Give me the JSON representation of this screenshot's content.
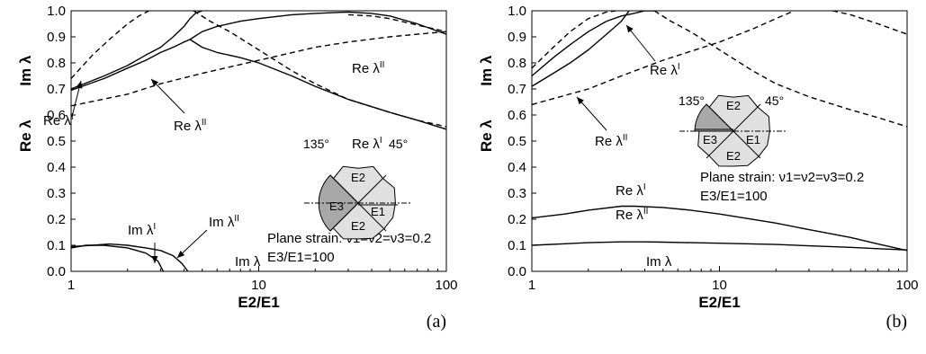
{
  "chart_data": [
    {
      "type": "line",
      "panel_label": "(a)",
      "xlabel": "E2/E1",
      "ylabel_left": "Re λ",
      "ylabel_right": "Im λ",
      "x_scale": "log",
      "xlim": [
        1,
        100
      ],
      "ylim": [
        0,
        1
      ],
      "x_ticks": [
        "1",
        "10",
        "100"
      ],
      "y_ticks": [
        "0.0",
        "0.1",
        "0.2",
        "0.3",
        "0.4",
        "0.5",
        "0.6",
        "0.7",
        "0.8",
        "0.9",
        "1.0"
      ],
      "grid": false,
      "series": [
        {
          "name": "Re λI",
          "style": "solid",
          "x": [
            1,
            1.5,
            2,
            2.5,
            3,
            3.5,
            4,
            4.3,
            4.6,
            5.0
          ],
          "y": [
            0.7,
            0.75,
            0.79,
            0.83,
            0.86,
            0.9,
            0.94,
            0.97,
            0.99,
            1.0
          ]
        },
        {
          "name": "Re λII",
          "style": "solid",
          "x": [
            1,
            1.5,
            2,
            2.5,
            3,
            3.5,
            4,
            4.3
          ],
          "y": [
            0.695,
            0.74,
            0.78,
            0.81,
            0.84,
            0.86,
            0.88,
            0.89
          ]
        },
        {
          "name": "Re λII (upper)",
          "style": "solid",
          "x": [
            4.3,
            5,
            6,
            8,
            10,
            15,
            20,
            30,
            40,
            50,
            70,
            100
          ],
          "y": [
            0.89,
            0.92,
            0.94,
            0.96,
            0.97,
            0.985,
            0.99,
            0.995,
            0.99,
            0.98,
            0.95,
            0.91
          ]
        },
        {
          "name": "Re λI (lower)",
          "style": "solid",
          "x": [
            4.3,
            5,
            6,
            8,
            10,
            15,
            20,
            30,
            50,
            70,
            100
          ],
          "y": [
            0.89,
            0.86,
            0.84,
            0.82,
            0.8,
            0.75,
            0.71,
            0.66,
            0.61,
            0.58,
            0.545
          ]
        },
        {
          "name": "Re λI dashed",
          "style": "dashed",
          "x": [
            1,
            1.3,
            1.6,
            2,
            2.3,
            2.6
          ],
          "y": [
            0.74,
            0.83,
            0.89,
            0.95,
            0.98,
            1.0
          ]
        },
        {
          "name": "Re λII dashed",
          "style": "dashed",
          "x": [
            1,
            2,
            3,
            5,
            10,
            20,
            30,
            50,
            70,
            100
          ],
          "y": [
            0.635,
            0.68,
            0.72,
            0.76,
            0.81,
            0.86,
            0.88,
            0.9,
            0.91,
            0.92
          ]
        },
        {
          "name": "Re λI dashed (right)",
          "style": "dashed",
          "x": [
            4.5,
            5.5,
            7,
            10,
            15,
            20,
            30,
            50,
            70,
            100
          ],
          "y": [
            1.0,
            0.96,
            0.92,
            0.85,
            0.77,
            0.72,
            0.66,
            0.61,
            0.58,
            0.555
          ]
        },
        {
          "name": "Re λII dashed (top)",
          "style": "dashed",
          "x": [
            30,
            40,
            50,
            70,
            100
          ],
          "y": [
            0.985,
            0.98,
            0.97,
            0.945,
            0.92
          ]
        },
        {
          "name": "Im λI",
          "style": "solid",
          "x": [
            1,
            1.2,
            1.5,
            2,
            2.5,
            2.9,
            3.1
          ],
          "y": [
            0.09,
            0.1,
            0.1,
            0.09,
            0.07,
            0.04,
            0.0
          ]
        },
        {
          "name": "Im λII",
          "style": "solid",
          "x": [
            1,
            1.3,
            1.6,
            2,
            2.5,
            3,
            3.5,
            3.9,
            4.2
          ],
          "y": [
            0.095,
            0.1,
            0.105,
            0.1,
            0.09,
            0.08,
            0.06,
            0.03,
            0.0
          ]
        }
      ],
      "annotations": {
        "re_l1": "Re λ",
        "re_l1_sup": "I",
        "re_l2": "Re λ",
        "re_l2_sup": "II",
        "re_l2_right": "Re λ",
        "re_l2_right_sup": "II",
        "re_l1_right": "Re λ",
        "re_l1_right_sup": "I",
        "im_l1": "Im λ",
        "im_l1_sup": "I",
        "im_l2": "Im λ",
        "im_l2_sup": "II",
        "im_l": "Im λ",
        "angle_135": "135°",
        "angle_45": "45°",
        "mat_top": "E2",
        "mat_left": "E3",
        "mat_right": "E1",
        "mat_bottom": "E2",
        "plane_strain": "Plane strain: ν1=ν2=ν3=0.2",
        "ratio": "E3/E1=100"
      }
    },
    {
      "type": "line",
      "panel_label": "(b)",
      "xlabel": "E2/E1",
      "ylabel_left": "Re λ",
      "ylabel_right": "Im λ",
      "x_scale": "log",
      "xlim": [
        1,
        100
      ],
      "ylim": [
        0,
        1
      ],
      "x_ticks": [
        "1",
        "10",
        "100"
      ],
      "y_ticks": [
        "0.0",
        "0.1",
        "0.2",
        "0.3",
        "0.4",
        "0.5",
        "0.6",
        "0.7",
        "0.8",
        "0.9",
        "1.0"
      ],
      "grid": false,
      "series": [
        {
          "name": "Re λI",
          "style": "solid",
          "x": [
            1,
            1.3,
            1.6,
            2,
            2.5,
            3,
            3.5,
            4,
            4.5
          ],
          "y": [
            0.75,
            0.82,
            0.87,
            0.92,
            0.96,
            0.98,
            0.99,
            1.0,
            1.0
          ]
        },
        {
          "name": "Re λII",
          "style": "solid",
          "x": [
            1,
            1.3,
            1.6,
            2,
            2.5,
            3,
            3.3
          ],
          "y": [
            0.71,
            0.76,
            0.8,
            0.85,
            0.91,
            0.96,
            1.0
          ]
        },
        {
          "name": "Re λI dashed",
          "style": "dashed",
          "x": [
            1,
            1.3,
            1.6,
            2,
            2.5,
            2.8
          ],
          "y": [
            0.78,
            0.86,
            0.92,
            0.97,
            0.995,
            1.0
          ]
        },
        {
          "name": "Re λII dashed",
          "style": "dashed",
          "x": [
            1,
            2,
            3,
            5,
            10,
            15,
            20,
            25
          ],
          "y": [
            0.64,
            0.7,
            0.75,
            0.81,
            0.88,
            0.93,
            0.97,
            1.0
          ]
        },
        {
          "name": "Re λI dashed (right)",
          "style": "dashed",
          "x": [
            4.5,
            5.5,
            7,
            10,
            15,
            20,
            30,
            50,
            70,
            100
          ],
          "y": [
            1.0,
            0.96,
            0.92,
            0.85,
            0.77,
            0.72,
            0.67,
            0.62,
            0.59,
            0.555
          ]
        },
        {
          "name": "Re λII dashed (top right)",
          "style": "dashed",
          "x": [
            40,
            50,
            70,
            100
          ],
          "y": [
            1.0,
            0.985,
            0.95,
            0.91
          ]
        },
        {
          "name": "Re λI (real)",
          "style": "solid",
          "x": [
            1,
            1.5,
            2,
            3,
            3.5,
            5,
            7,
            10,
            20,
            30,
            50,
            70,
            100
          ],
          "y": [
            0.205,
            0.22,
            0.235,
            0.25,
            0.25,
            0.245,
            0.235,
            0.22,
            0.185,
            0.16,
            0.13,
            0.105,
            0.08
          ]
        },
        {
          "name": "Im λ",
          "style": "solid",
          "x": [
            1,
            2,
            3,
            4,
            5,
            7,
            10,
            20,
            30,
            50,
            70,
            100
          ],
          "y": [
            0.1,
            0.11,
            0.113,
            0.113,
            0.112,
            0.11,
            0.108,
            0.103,
            0.098,
            0.092,
            0.087,
            0.082
          ]
        }
      ],
      "annotations": {
        "re_l1": "Re λ",
        "re_l1_sup": "I",
        "re_l2": "Re λ",
        "re_l2_sup": "II",
        "re_low1": "Re λ",
        "re_low1_sup": "I",
        "re_low2": "Re λ",
        "re_low2_sup": "II",
        "im_l": "Im λ",
        "angle_135": "135°",
        "angle_45": "45°",
        "mat_top": "E2",
        "mat_left": "E3",
        "mat_right": "E1",
        "mat_bottom": "E2",
        "plane_strain": "Plane strain: ν1=ν2=ν3=0.2",
        "ratio": "E3/E1=100"
      }
    }
  ]
}
